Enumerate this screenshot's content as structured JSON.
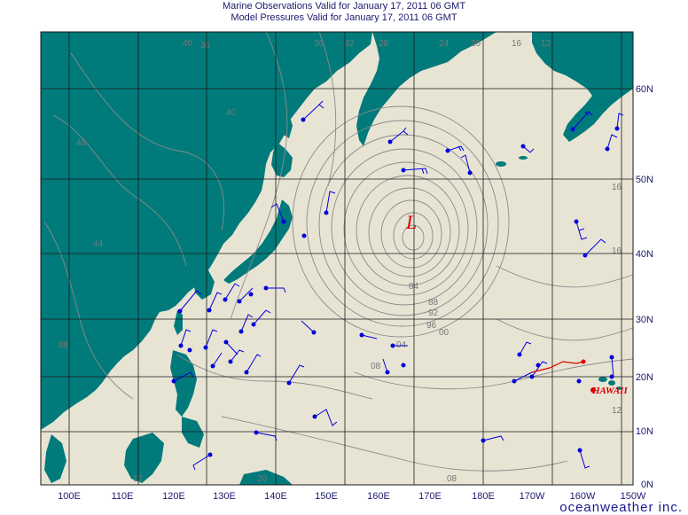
{
  "header": {
    "line1": "Marine Observations Valid for January 17, 2011 06 GMT",
    "line2": "Model Pressures Valid for January 17, 2011 06 GMT"
  },
  "axes": {
    "lon_labels": [
      "100E",
      "110E",
      "120E",
      "130E",
      "140E",
      "150E",
      "160E",
      "170E",
      "180E",
      "170W",
      "160W",
      "150W"
    ],
    "lat_labels": [
      "0N",
      "10N",
      "20N",
      "30N",
      "40N",
      "50N",
      "60N"
    ]
  },
  "map": {
    "low_marker": "L",
    "place_label": "HAWAII",
    "isobar_labels": [
      "40",
      "36",
      "36",
      "32",
      "28",
      "24",
      "20",
      "16",
      "12",
      "40",
      "48",
      "44",
      "16",
      "16",
      "12",
      "84",
      "88",
      "92",
      "96",
      "00",
      "04",
      "08",
      "08",
      "12",
      "20",
      "08"
    ]
  },
  "colors": {
    "ocean": "#e8e4d4",
    "land": "#007a7a",
    "grid": "#1a1a1a",
    "isobar": "#8a8a8a",
    "obs": "#0000dd",
    "hawaii": "#dd0000"
  },
  "brand": "oceanweather inc."
}
